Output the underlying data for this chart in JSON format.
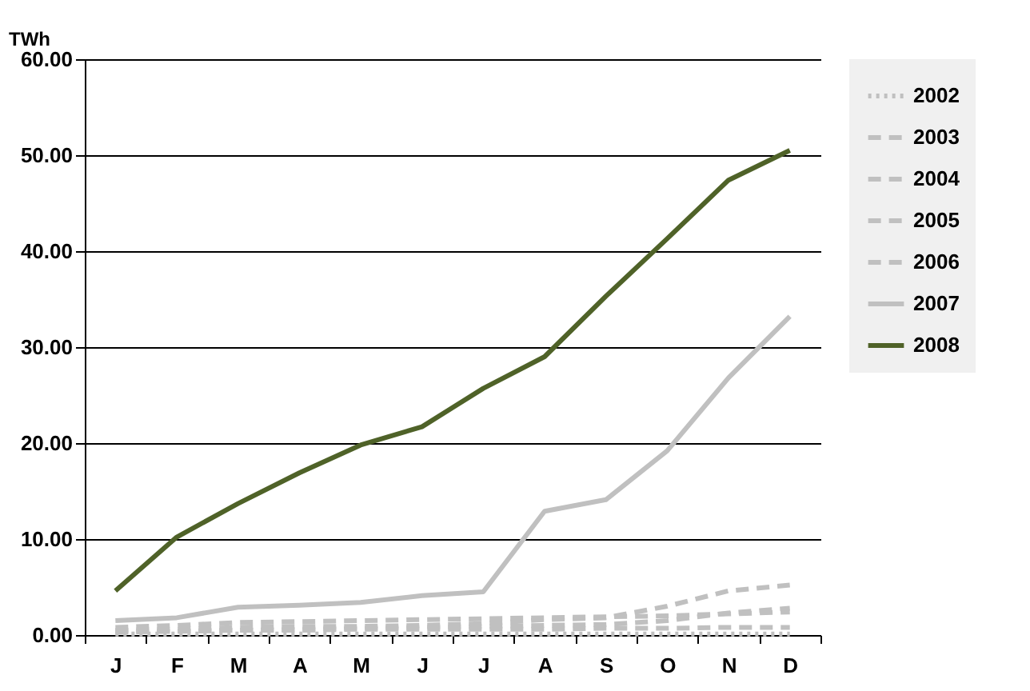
{
  "chart_data": {
    "type": "line",
    "ylabel": "TWh",
    "categories": [
      "J",
      "F",
      "M",
      "A",
      "M",
      "J",
      "J",
      "A",
      "S",
      "O",
      "N",
      "D"
    ],
    "series": [
      {
        "name": "2002",
        "color": "#c0c0c0",
        "line_style": "dotted",
        "values": [
          0.1,
          0.1,
          0.1,
          0.1,
          0.1,
          0.1,
          0.1,
          0.1,
          0.1,
          0.1,
          0.1,
          0.1
        ]
      },
      {
        "name": "2003",
        "color": "#c0c0c0",
        "line_style": "dashed",
        "values": [
          0.4,
          0.4,
          0.5,
          0.5,
          0.6,
          0.6,
          0.6,
          0.6,
          0.7,
          0.7,
          0.8,
          0.8
        ]
      },
      {
        "name": "2004",
        "color": "#c0c0c0",
        "line_style": "dashed",
        "values": [
          0.5,
          0.6,
          0.8,
          0.9,
          0.9,
          1.0,
          1.2,
          1.6,
          1.8,
          3.0,
          4.6,
          5.2
        ]
      },
      {
        "name": "2005",
        "color": "#c0c0c0",
        "line_style": "dashed",
        "values": [
          0.3,
          0.4,
          0.5,
          0.6,
          0.7,
          0.8,
          0.9,
          1.0,
          1.1,
          1.5,
          2.3,
          2.8
        ]
      },
      {
        "name": "2006",
        "color": "#c0c0c0",
        "line_style": "dashed",
        "values": [
          0.8,
          1.0,
          1.3,
          1.4,
          1.5,
          1.6,
          1.7,
          1.8,
          1.9,
          2.0,
          2.2,
          2.4
        ]
      },
      {
        "name": "2007",
        "color": "#c0c0c0",
        "line_style": "solid",
        "values": [
          1.5,
          1.8,
          2.9,
          3.1,
          3.4,
          4.1,
          4.5,
          12.9,
          14.1,
          19.2,
          26.8,
          33.2
        ]
      },
      {
        "name": "2008",
        "color": "#4f6228",
        "line_style": "solid",
        "values": [
          4.6,
          10.2,
          13.7,
          16.9,
          19.8,
          21.7,
          25.7,
          29.0,
          35.3,
          41.3,
          47.4,
          50.5
        ]
      }
    ],
    "ylim": [
      0,
      60
    ],
    "yticks": [
      {
        "value": 0,
        "label": "0.00"
      },
      {
        "value": 10,
        "label": "10.00"
      },
      {
        "value": 20,
        "label": "20.00"
      },
      {
        "value": 30,
        "label": "30.00"
      },
      {
        "value": 40,
        "label": "40.00"
      },
      {
        "value": 50,
        "label": "50.00"
      },
      {
        "value": 60,
        "label": "60.00"
      }
    ],
    "grid": "y",
    "legend": "top right",
    "marker": "none"
  }
}
